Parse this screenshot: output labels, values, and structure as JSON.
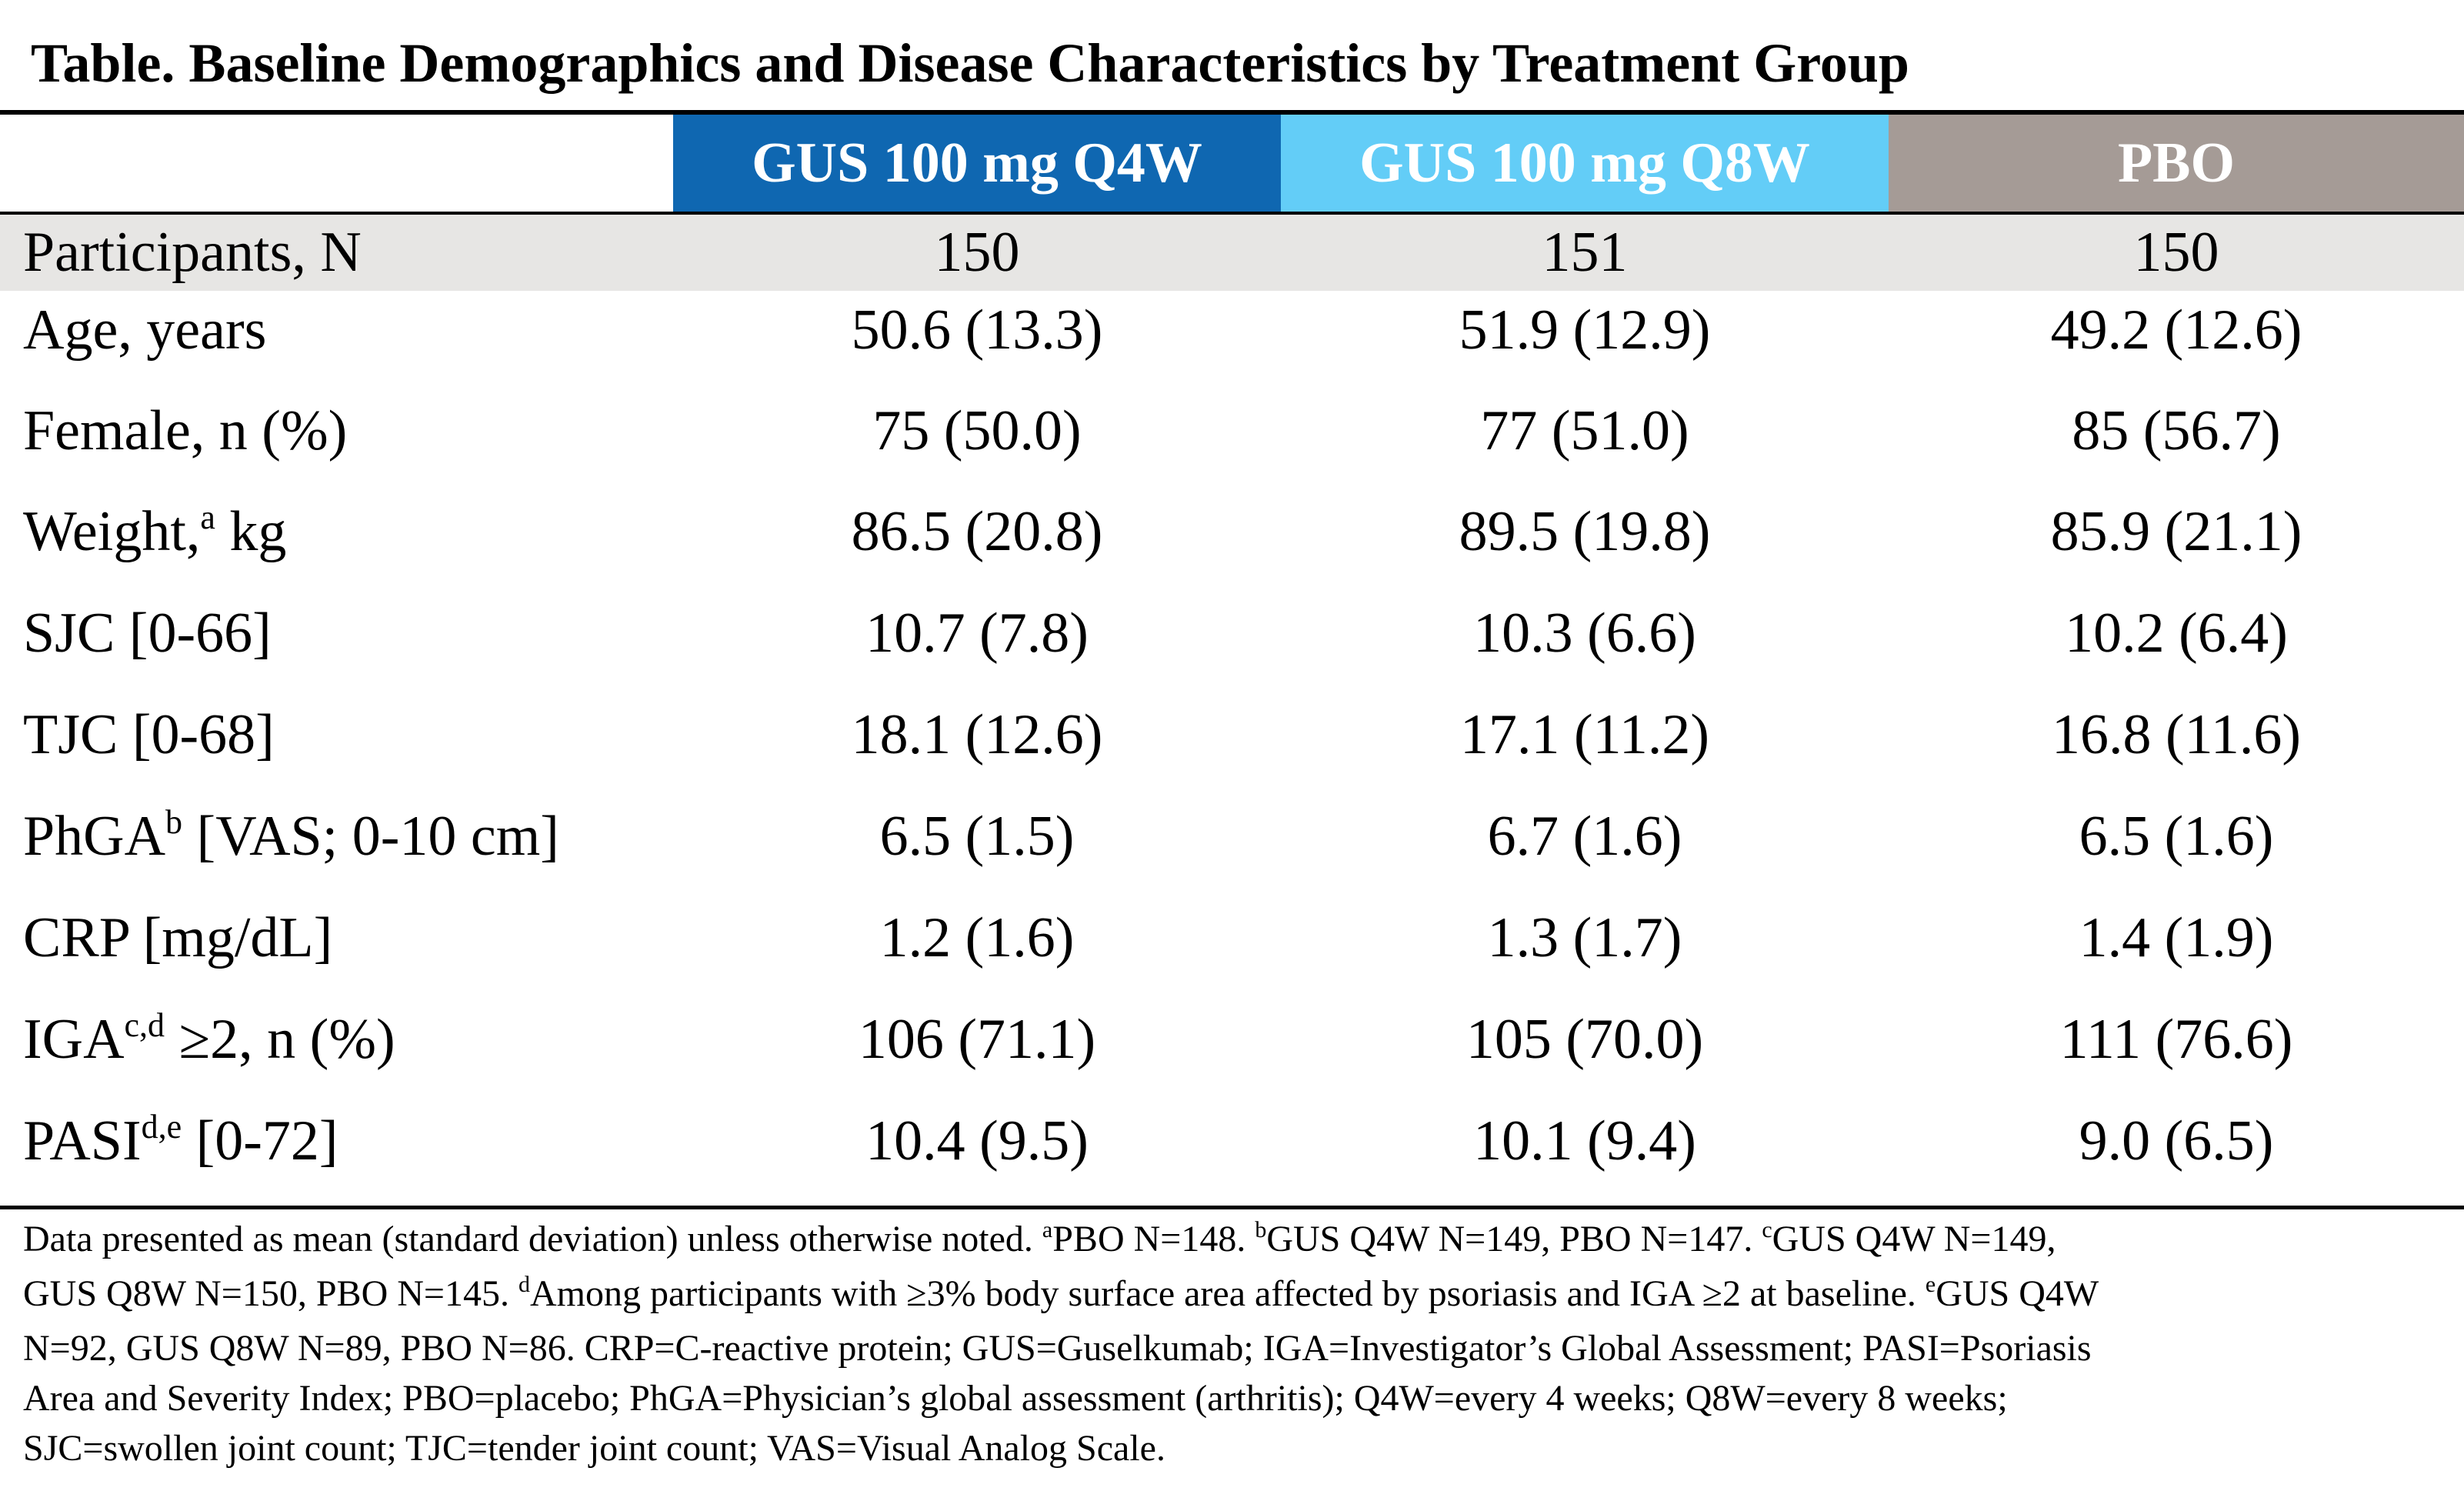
{
  "title": "Table. Baseline Demographics and Disease Characteristics by Treatment Group",
  "colors": {
    "q4w_header": "#0f67b1",
    "q8w_header": "#63cdf7",
    "pbo_header": "#a59b96",
    "participants_band": "#e7e6e4"
  },
  "columns": [
    "GUS 100 mg Q4W",
    "GUS 100 mg Q8W",
    "PBO"
  ],
  "rows": [
    {
      "label": "Participants, N",
      "sup": "",
      "label_rest": "",
      "values": [
        "150",
        "151",
        "150"
      ]
    },
    {
      "label": "Age, years",
      "sup": "",
      "label_rest": "",
      "values": [
        "50.6 (13.3)",
        "51.9 (12.9)",
        "49.2 (12.6)"
      ]
    },
    {
      "label": "Female, n (%)",
      "sup": "",
      "label_rest": "",
      "values": [
        "75 (50.0)",
        "77 (51.0)",
        "85 (56.7)"
      ]
    },
    {
      "label": "Weight,",
      "sup": "a",
      "label_rest": " kg",
      "values": [
        "86.5 (20.8)",
        "89.5 (19.8)",
        "85.9 (21.1)"
      ]
    },
    {
      "label": "SJC [0-66]",
      "sup": "",
      "label_rest": "",
      "values": [
        "10.7 (7.8)",
        "10.3 (6.6)",
        "10.2 (6.4)"
      ]
    },
    {
      "label": "TJC [0-68]",
      "sup": "",
      "label_rest": "",
      "values": [
        "18.1 (12.6)",
        "17.1 (11.2)",
        "16.8 (11.6)"
      ]
    },
    {
      "label": "PhGA",
      "sup": "b",
      "label_rest": " [VAS; 0-10 cm]",
      "values": [
        "6.5 (1.5)",
        "6.7 (1.6)",
        "6.5 (1.6)"
      ]
    },
    {
      "label": "CRP [mg/dL]",
      "sup": "",
      "label_rest": "",
      "values": [
        "1.2 (1.6)",
        "1.3 (1.7)",
        "1.4 (1.9)"
      ]
    },
    {
      "label": "IGA",
      "sup": "c,d",
      "label_rest": " ≥2, n (%)",
      "values": [
        "106 (71.1)",
        "105 (70.0)",
        "111 (76.6)"
      ]
    },
    {
      "label": "PASI",
      "sup": "d,e",
      "label_rest": " [0-72]",
      "values": [
        "10.4 (9.5)",
        "10.1 (9.4)",
        "9.0 (6.5)"
      ]
    }
  ],
  "footnote": {
    "line1_a": "Data presented as mean (standard deviation) unless otherwise noted. ",
    "mark_a": "a",
    "line1_b": "PBO N=148. ",
    "mark_b": "b",
    "line1_c": "GUS Q4W N=149, PBO N=147. ",
    "mark_c": "c",
    "line1_d": "GUS Q4W N=149,",
    "line2_a": "GUS Q8W N=150, PBO N=145. ",
    "mark_d": "d",
    "line2_b": "Among participants with ≥3% body surface area affected by psoriasis and IGA ≥2 at baseline. ",
    "mark_e": "e",
    "line2_c": "GUS Q4W",
    "line3": "N=92, GUS Q8W N=89, PBO N=86. CRP=C-reactive protein; GUS=Guselkumab; IGA=Investigator’s Global Assessment; PASI=Psoriasis",
    "line4": "Area and Severity Index; PBO=placebo; PhGA=Physician’s global assessment (arthritis); Q4W=every 4 weeks; Q8W=every 8 weeks;",
    "line5": "SJC=swollen joint count; TJC=tender joint count; VAS=Visual Analog Scale."
  }
}
